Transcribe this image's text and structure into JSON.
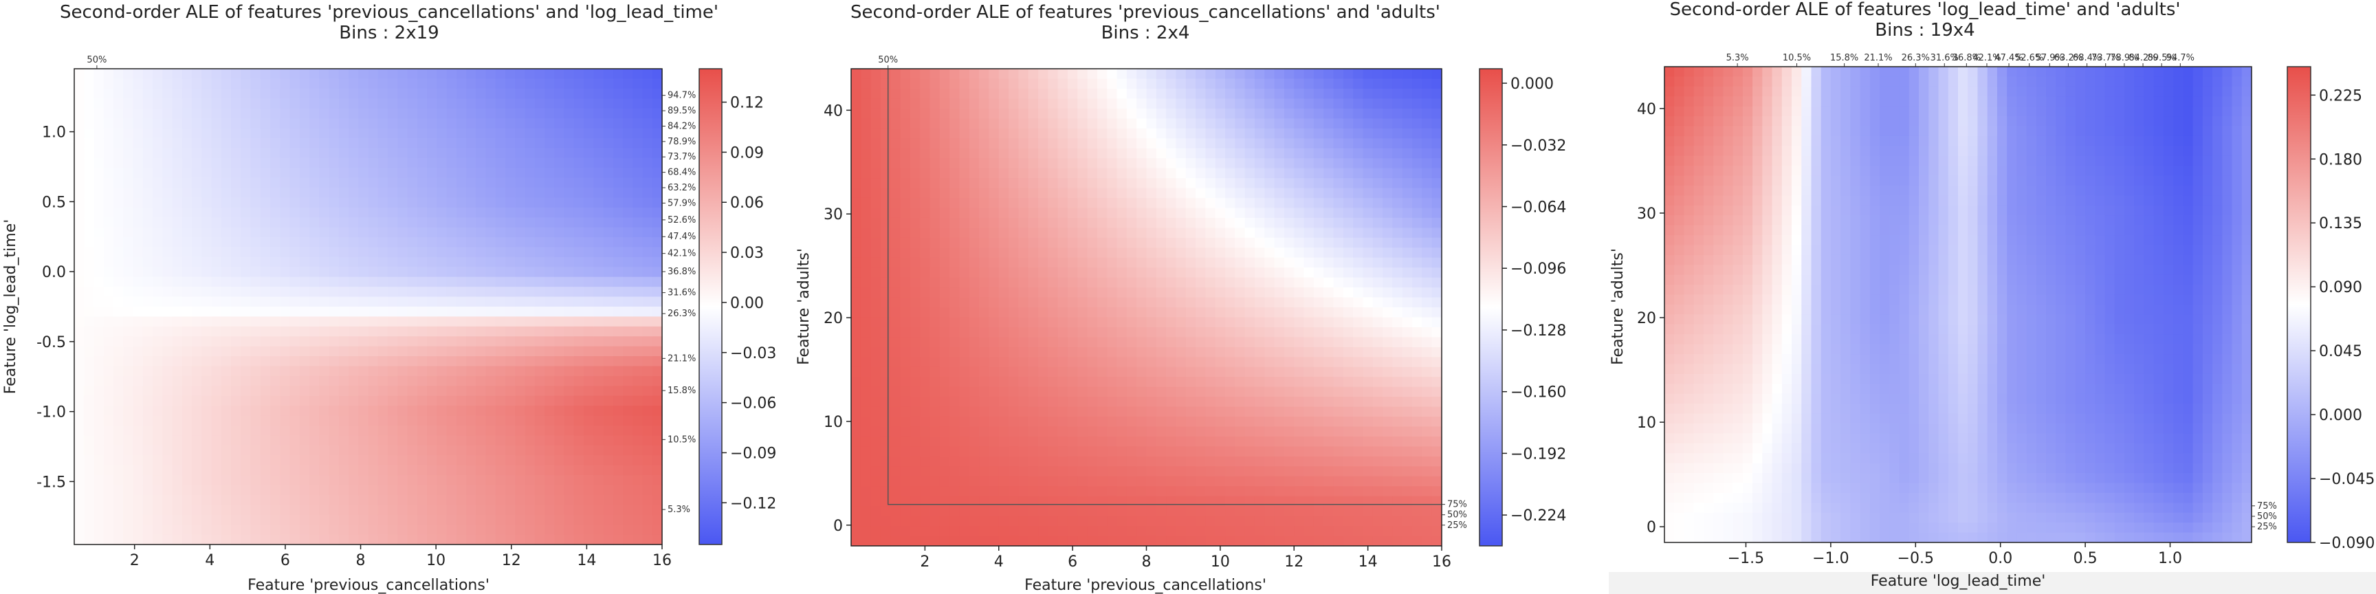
{
  "colors": {
    "low": "#4a57f2",
    "mid": "#ffffff",
    "high": "#e84f4a"
  },
  "chart_data": [
    {
      "type": "heatmap",
      "title": "Second-order ALE of features 'previous_cancellations' and 'log_lead_time'",
      "subtitle": "Bins : 2x19",
      "xlabel": "Feature 'previous_cancellations'",
      "ylabel": "Feature 'log_lead_time'",
      "xlim": [
        0.4,
        16
      ],
      "ylim": [
        -1.95,
        1.45
      ],
      "xticks": [
        2,
        4,
        6,
        8,
        10,
        12,
        14,
        16
      ],
      "yticks": [
        -1.5,
        -1.0,
        -0.5,
        0.0,
        0.5,
        1.0
      ],
      "top_percentiles": [
        {
          "value": 1,
          "label": "50%"
        }
      ],
      "right_percentiles": [
        {
          "value": -1.7,
          "label": "5.3%"
        },
        {
          "value": -1.2,
          "label": "10.5%"
        },
        {
          "value": -0.85,
          "label": "15.8%"
        },
        {
          "value": -0.62,
          "label": "21.1%"
        },
        {
          "value": -0.3,
          "label": "26.3%"
        },
        {
          "value": -0.15,
          "label": "31.6%"
        },
        {
          "value": 0.0,
          "label": "36.8%"
        },
        {
          "value": 0.13,
          "label": "42.1%"
        },
        {
          "value": 0.25,
          "label": "47.4%"
        },
        {
          "value": 0.37,
          "label": "52.6%"
        },
        {
          "value": 0.49,
          "label": "57.9%"
        },
        {
          "value": 0.6,
          "label": "63.2%"
        },
        {
          "value": 0.71,
          "label": "68.4%"
        },
        {
          "value": 0.82,
          "label": "73.7%"
        },
        {
          "value": 0.93,
          "label": "78.9%"
        },
        {
          "value": 1.04,
          "label": "84.2%"
        },
        {
          "value": 1.15,
          "label": "89.5%"
        },
        {
          "value": 1.26,
          "label": "94.7%"
        }
      ],
      "colorbar": {
        "min": -0.145,
        "max": 0.14,
        "ticks": [
          -0.12,
          -0.09,
          -0.06,
          -0.03,
          0.0,
          0.03,
          0.06,
          0.09,
          0.12
        ],
        "tick_labels": [
          "−0.12",
          "−0.09",
          "−0.06",
          "−0.03",
          "0.00",
          "0.03",
          "0.06",
          "0.09",
          "0.12"
        ]
      },
      "z_grid": {
        "x": [
          0.4,
          2,
          4,
          6,
          8,
          10,
          12,
          14,
          16
        ],
        "y": [
          -1.95,
          -1.5,
          -1.0,
          -0.7,
          -0.45,
          -0.3,
          -0.29,
          0.0,
          0.5,
          1.0,
          1.45
        ],
        "z": [
          [
            0.0,
            0.01,
            0.025,
            0.04,
            0.055,
            0.07,
            0.085,
            0.1,
            0.11
          ],
          [
            0.0,
            0.01,
            0.03,
            0.045,
            0.06,
            0.075,
            0.09,
            0.105,
            0.115
          ],
          [
            0.0,
            0.012,
            0.03,
            0.048,
            0.065,
            0.085,
            0.1,
            0.12,
            0.13
          ],
          [
            0.0,
            0.01,
            0.025,
            0.04,
            0.055,
            0.07,
            0.085,
            0.1,
            0.11
          ],
          [
            0.0,
            0.006,
            0.015,
            0.022,
            0.03,
            0.04,
            0.05,
            0.06,
            0.065
          ],
          [
            0.0,
            0.002,
            0.004,
            0.006,
            0.008,
            0.01,
            0.012,
            0.014,
            0.016
          ],
          [
            0.0,
            -0.002,
            -0.003,
            -0.005,
            -0.006,
            -0.008,
            -0.01,
            -0.012,
            -0.015
          ],
          [
            0.0,
            -0.008,
            -0.018,
            -0.028,
            -0.04,
            -0.05,
            -0.06,
            -0.07,
            -0.08
          ],
          [
            0.0,
            -0.01,
            -0.025,
            -0.04,
            -0.055,
            -0.07,
            -0.085,
            -0.095,
            -0.11
          ],
          [
            0.0,
            -0.012,
            -0.03,
            -0.048,
            -0.065,
            -0.08,
            -0.095,
            -0.11,
            -0.125
          ],
          [
            0.0,
            -0.015,
            -0.035,
            -0.055,
            -0.075,
            -0.09,
            -0.11,
            -0.125,
            -0.14
          ]
        ]
      }
    },
    {
      "type": "heatmap",
      "title": "Second-order ALE of features 'previous_cancellations' and 'adults'",
      "subtitle": "Bins : 2x4",
      "xlabel": "Feature 'previous_cancellations'",
      "ylabel": "Feature 'adults'",
      "xlim": [
        0,
        16
      ],
      "ylim": [
        -2,
        44
      ],
      "xticks": [
        2,
        4,
        6,
        8,
        10,
        12,
        14,
        16
      ],
      "yticks": [
        0,
        10,
        20,
        30,
        40
      ],
      "top_percentiles": [
        {
          "value": 1,
          "label": "50%"
        }
      ],
      "right_percentiles": [
        {
          "value": 0,
          "label": "25%"
        },
        {
          "value": 1,
          "label": "50%"
        },
        {
          "value": 2,
          "label": "75%"
        }
      ],
      "frame_lines": [
        {
          "x": [
            1,
            1,
            16
          ],
          "y": [
            44,
            2,
            2
          ]
        }
      ],
      "colorbar": {
        "min": -0.24,
        "max": 0.0075,
        "ticks": [
          -0.224,
          -0.192,
          -0.16,
          -0.128,
          -0.096,
          -0.064,
          -0.032,
          0.0
        ],
        "tick_labels": [
          "−0.224",
          "−0.192",
          "−0.160",
          "−0.128",
          "−0.096",
          "−0.064",
          "−0.032",
          "0.000"
        ]
      },
      "z_grid": {
        "x": [
          0,
          2,
          4,
          6,
          8,
          10,
          12,
          14,
          16
        ],
        "y": [
          -2,
          2,
          10,
          20,
          30,
          44
        ],
        "z": [
          [
            0.0,
            0.0,
            0.0,
            -0.002,
            -0.004,
            -0.006,
            -0.008,
            -0.01,
            -0.012
          ],
          [
            0.0,
            -0.002,
            -0.004,
            -0.006,
            -0.008,
            -0.01,
            -0.012,
            -0.014,
            -0.016
          ],
          [
            0.0,
            -0.006,
            -0.014,
            -0.022,
            -0.03,
            -0.038,
            -0.046,
            -0.054,
            -0.062
          ],
          [
            0.0,
            -0.012,
            -0.028,
            -0.044,
            -0.06,
            -0.076,
            -0.092,
            -0.108,
            -0.124
          ],
          [
            0.0,
            -0.018,
            -0.042,
            -0.066,
            -0.09,
            -0.114,
            -0.138,
            -0.162,
            -0.186
          ],
          [
            0.0,
            -0.027,
            -0.063,
            -0.099,
            -0.135,
            -0.17,
            -0.205,
            -0.232,
            -0.24
          ]
        ]
      }
    },
    {
      "type": "heatmap",
      "title": "Second-order ALE of features 'log_lead_time' and 'adults'",
      "subtitle": "Bins : 19x4",
      "xlabel": "Feature 'log_lead_time'",
      "ylabel": "Feature 'adults'",
      "xlim": [
        -1.98,
        1.48
      ],
      "ylim": [
        -1.5,
        44
      ],
      "xticks": [
        -1.5,
        -1.0,
        -0.5,
        0.0,
        0.5,
        1.0
      ],
      "xtick_labels": [
        "−1.5",
        "−1.0",
        "−0.5",
        "0.0",
        "0.5",
        "1.0"
      ],
      "yticks": [
        0,
        10,
        20,
        30,
        40
      ],
      "top_percentiles": [
        {
          "value": -1.55,
          "label": "5.3%"
        },
        {
          "value": -1.2,
          "label": "10.5%"
        },
        {
          "value": -0.92,
          "label": "15.8%"
        },
        {
          "value": -0.72,
          "label": "21.1%"
        },
        {
          "value": -0.5,
          "label": "26.3%"
        },
        {
          "value": -0.33,
          "label": "31.6%"
        },
        {
          "value": -0.2,
          "label": "36.8%"
        },
        {
          "value": -0.08,
          "label": "42.1%"
        },
        {
          "value": 0.05,
          "label": "47.4%"
        },
        {
          "value": 0.17,
          "label": "52.6%"
        },
        {
          "value": 0.29,
          "label": "57.9%"
        },
        {
          "value": 0.4,
          "label": "63.2%"
        },
        {
          "value": 0.51,
          "label": "68.4%"
        },
        {
          "value": 0.62,
          "label": "73.7%"
        },
        {
          "value": 0.73,
          "label": "78.9%"
        },
        {
          "value": 0.84,
          "label": "84.2%"
        },
        {
          "value": 0.95,
          "label": "89.5%"
        },
        {
          "value": 1.06,
          "label": "94.7%"
        }
      ],
      "right_percentiles": [
        {
          "value": 0,
          "label": "25%"
        },
        {
          "value": 1,
          "label": "50%"
        },
        {
          "value": 2,
          "label": "75%"
        }
      ],
      "colorbar": {
        "min": -0.09,
        "max": 0.245,
        "ticks": [
          -0.09,
          -0.045,
          0.0,
          0.045,
          0.09,
          0.135,
          0.18,
          0.225
        ],
        "tick_labels": [
          "−0.090",
          "−0.045",
          "0.000",
          "0.045",
          "0.090",
          "0.135",
          "0.180",
          "0.225"
        ]
      },
      "z_grid": {
        "x": [
          -1.98,
          -1.5,
          -1.2,
          -1.05,
          -0.7,
          -0.55,
          -0.2,
          0.05,
          0.45,
          0.7,
          1.1,
          1.3,
          1.48
        ],
        "y": [
          -1.5,
          1,
          5,
          12,
          20,
          30,
          38,
          44
        ],
        "z": [
          [
            0.08,
            0.07,
            0.05,
            0.02,
            0.0,
            0.0,
            0.01,
            0.0,
            0.0,
            -0.01,
            -0.02,
            -0.01,
            0.0
          ],
          [
            0.08,
            0.07,
            0.05,
            0.02,
            0.0,
            0.0,
            0.02,
            0.0,
            -0.01,
            -0.02,
            -0.04,
            -0.02,
            0.0
          ],
          [
            0.09,
            0.08,
            0.05,
            0.01,
            0.0,
            -0.01,
            0.02,
            -0.01,
            -0.03,
            -0.04,
            -0.06,
            -0.03,
            -0.01
          ],
          [
            0.12,
            0.1,
            0.06,
            0.01,
            -0.01,
            -0.01,
            0.03,
            -0.02,
            -0.04,
            -0.05,
            -0.07,
            -0.04,
            -0.02
          ],
          [
            0.15,
            0.12,
            0.07,
            0.01,
            -0.02,
            -0.01,
            0.04,
            -0.02,
            -0.04,
            -0.06,
            -0.07,
            -0.05,
            -0.02
          ],
          [
            0.19,
            0.15,
            0.08,
            0.01,
            -0.02,
            -0.02,
            0.04,
            -0.03,
            -0.05,
            -0.06,
            -0.08,
            -0.06,
            -0.03
          ],
          [
            0.22,
            0.17,
            0.09,
            0.01,
            -0.03,
            -0.03,
            0.05,
            -0.03,
            -0.06,
            -0.07,
            -0.09,
            -0.06,
            -0.03
          ],
          [
            0.24,
            0.19,
            0.1,
            0.01,
            -0.03,
            -0.03,
            0.05,
            -0.04,
            -0.06,
            -0.07,
            -0.09,
            -0.07,
            -0.04
          ]
        ]
      }
    }
  ]
}
